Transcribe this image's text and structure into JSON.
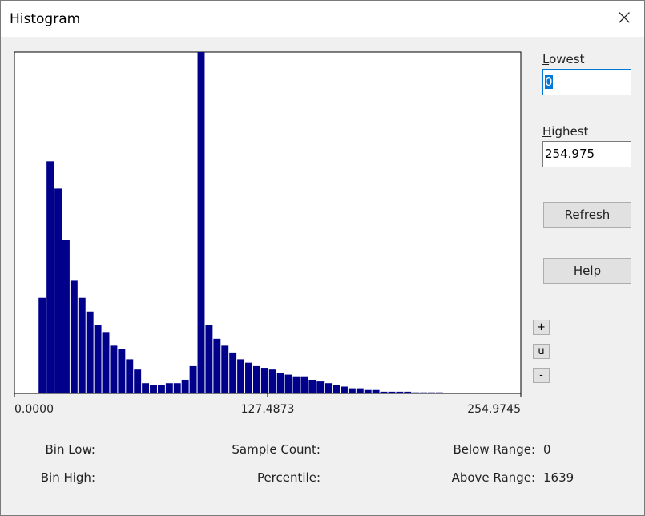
{
  "window": {
    "title": "Histogram",
    "close": "×",
    "lowest_label": "Lowest",
    "lowest_value": "0",
    "highest_label": "Highest",
    "highest_value": "254.975",
    "buttons": [
      "Refresh",
      "Help"
    ],
    "small_buttons": [
      "+",
      "u",
      "-"
    ],
    "stats": {
      "bin_low": "Bin Low:",
      "sample_count": "Sample Count:",
      "below_range": "Below Range:",
      "below_range_value": 0,
      "bin_high": "Bin High:",
      "percentile": "Percentile:",
      "above_range": "Above Range:",
      "above_range_value": 1639
    }
  },
  "chart_data": {
    "type": "histogram",
    "color": "#00008b",
    "xlim": [
      0,
      254.9745
    ],
    "ylim": [
      0,
      100
    ],
    "xticks": [
      {
        "value": 0,
        "label": "0.0000"
      },
      {
        "value": 127.4873,
        "label": "127.4873"
      },
      {
        "value": 254.9745,
        "label": "254.9745"
      }
    ],
    "bins": [
      12,
      16,
      20,
      24,
      28,
      32,
      36,
      40,
      44,
      48,
      52,
      56,
      60,
      64,
      68,
      72,
      76,
      80,
      84,
      88,
      92,
      96,
      100,
      104,
      108,
      112,
      116,
      120,
      124,
      128,
      132,
      136,
      140,
      144,
      148,
      152,
      156,
      160,
      164,
      168,
      172,
      176,
      180,
      184,
      188,
      192,
      196,
      200,
      204,
      208,
      212,
      216,
      220
    ],
    "values": [
      28,
      68,
      60,
      45,
      33,
      28,
      24,
      20,
      18,
      14,
      13,
      10,
      7,
      3,
      2.5,
      2.5,
      3,
      3,
      4,
      8,
      100,
      20,
      16,
      14,
      12,
      10,
      9,
      8,
      7.5,
      7,
      6,
      5.5,
      5,
      5,
      4,
      3.5,
      3,
      2.5,
      2,
      1.5,
      1.5,
      1,
      1,
      0.5,
      0.5,
      0.5,
      0.5,
      0.3,
      0.3,
      0.3,
      0.3,
      0.2
    ]
  }
}
